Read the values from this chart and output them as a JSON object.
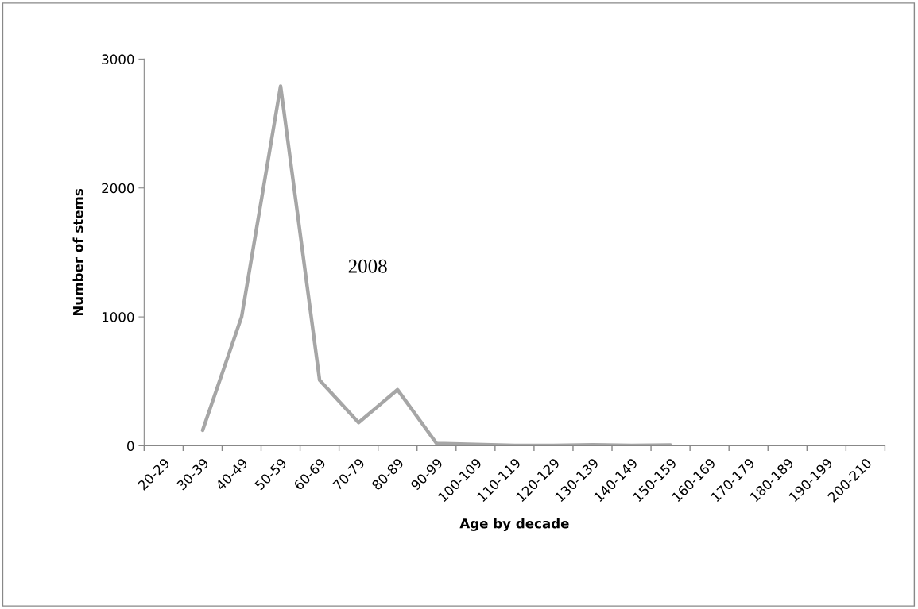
{
  "chart_data": {
    "type": "line",
    "xlabel": "Age by decade",
    "ylabel": "Number of stems",
    "categories": [
      "20-29",
      "30-39",
      "40-49",
      "50-59",
      "60-69",
      "70-79",
      "80-89",
      "90-99",
      "100-109",
      "110-119",
      "120-129",
      "130-139",
      "140-149",
      "150-159",
      "160-169",
      "170-179",
      "180-189",
      "190-199",
      "200-210"
    ],
    "series": [
      {
        "color": "#a6a6a6",
        "values": [
          null,
          120,
          1000,
          2790,
          510,
          180,
          435,
          18,
          10,
          3,
          3,
          8,
          3,
          6,
          null,
          null,
          null,
          null,
          null
        ]
      }
    ],
    "ylim": [
      0,
      3000
    ],
    "yticks": [
      0,
      1000,
      2000,
      3000
    ],
    "grid": false,
    "legend": false,
    "marker": "none",
    "line_style": "solid",
    "annotations": [
      "2008"
    ]
  }
}
